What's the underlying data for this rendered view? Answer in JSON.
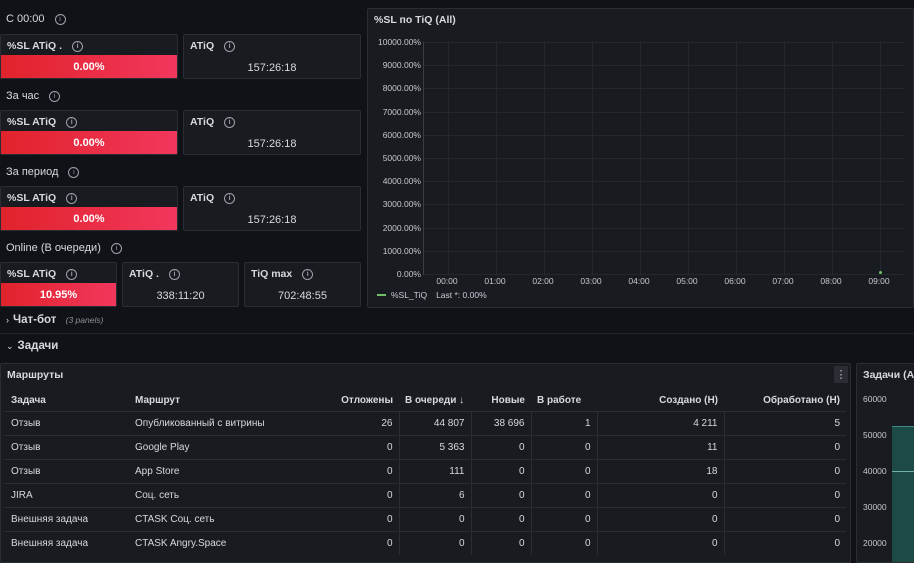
{
  "rows": [
    {
      "title": "С 00:00"
    },
    {
      "title": "За час"
    },
    {
      "title": "За период"
    },
    {
      "title": "Online (В очереди)"
    }
  ],
  "stats": {
    "r1_sl_title": "%SL ATiQ .",
    "r1_sl_value": "0.00%",
    "r1_atiq_title": "ATiQ",
    "r1_atiq_value": "157:26:18",
    "r2_sl_title": "%SL ATiQ",
    "r2_sl_value": "0.00%",
    "r2_atiq_title": "ATiQ",
    "r2_atiq_value": "157:26:18",
    "r3_sl_title": "%SL ATiQ",
    "r3_sl_value": "0.00%",
    "r3_atiq_title": "ATiQ",
    "r3_atiq_value": "157:26:18",
    "r4_sl_title": "%SL ATiQ",
    "r4_sl_value": "10.95%",
    "r4_atiq_title": "ATiQ .",
    "r4_atiq_value": "338:11:20",
    "r4_tiq_title": "TiQ max",
    "r4_tiq_value": "702:48:55"
  },
  "chart_panel": {
    "title": "%SL по TiQ (All)",
    "legend_name": "%SL_TiQ",
    "legend_last": "Last *: 0.00%"
  },
  "chart_data": {
    "type": "line",
    "x": [
      "00:00",
      "01:00",
      "02:00",
      "03:00",
      "04:00",
      "05:00",
      "06:00",
      "07:00",
      "08:00",
      "09:00"
    ],
    "y_ticks": [
      "10000.00%",
      "9000.00%",
      "8000.00%",
      "7000.00%",
      "6000.00%",
      "5000.00%",
      "4000.00%",
      "3000.00%",
      "2000.00%",
      "1000.00%",
      "0.00%"
    ],
    "ylim": [
      0,
      10000
    ],
    "series": [
      {
        "name": "%SL_TiQ",
        "color": "#73bf69",
        "points": [
          {
            "x": "09:00",
            "y": 0
          }
        ]
      }
    ],
    "grid": true,
    "legend": "bottom-left"
  },
  "sections": {
    "chatbot": "Чат-бот",
    "chatbot_meta": "(3 panels)",
    "tasks": "Задачи"
  },
  "routes": {
    "title": "Маршруты",
    "menu_icon": "vertical-dots-icon",
    "columns": [
      "Задача",
      "Маршрут",
      "Отложены",
      "В очереди ↓",
      "Новые",
      "В работе",
      "Создано (Н)",
      "Обработано (Н)"
    ],
    "rows": [
      [
        "Отзыв",
        "Опубликованный с витрины",
        "26",
        "44 807",
        "38 696",
        "1",
        "4 211",
        "5"
      ],
      [
        "Отзыв",
        "Google Play",
        "0",
        "5 363",
        "0",
        "0",
        "11",
        "0"
      ],
      [
        "Отзыв",
        "App Store",
        "0",
        "111",
        "0",
        "0",
        "18",
        "0"
      ],
      [
        "JIRA",
        "Соц. сеть",
        "0",
        "6",
        "0",
        "0",
        "0",
        "0"
      ],
      [
        "Внешняя задача",
        "CTASK Соц. сеть",
        "0",
        "0",
        "0",
        "0",
        "0",
        "0"
      ],
      [
        "Внешняя задача",
        "CTASK Angry.Space",
        "0",
        "0",
        "0",
        "0",
        "0",
        "0"
      ]
    ]
  },
  "right_panel": {
    "title": "Задачи (All",
    "y_ticks": [
      "60000",
      "50000",
      "40000",
      "30000",
      "20000"
    ]
  },
  "colors": {
    "red_gradient_start": "#e0232b",
    "red_gradient_end": "#f2375d",
    "series_green": "#73bf69",
    "area_teal": "#1d4a45"
  }
}
